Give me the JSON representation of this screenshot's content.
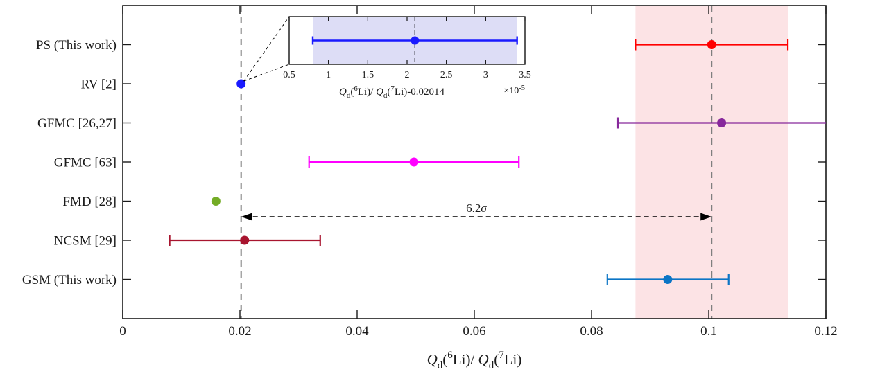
{
  "chart_data": {
    "type": "scatter",
    "subtype": "forest-plot-with-errorbars",
    "title": "",
    "xlabel_segments": [
      {
        "text": "Q",
        "style": "italic"
      },
      {
        "text": "d",
        "style": "sub"
      },
      {
        "text": "(",
        "style": "base"
      },
      {
        "text": "6",
        "style": "sup"
      },
      {
        "text": "Li)/ ",
        "style": "base"
      },
      {
        "text": "Q",
        "style": "italic"
      },
      {
        "text": "d",
        "style": "sub"
      },
      {
        "text": "(",
        "style": "base"
      },
      {
        "text": "7",
        "style": "sup"
      },
      {
        "text": "Li)",
        "style": "base"
      }
    ],
    "xlim": [
      0,
      0.12
    ],
    "x_ticks": [
      0,
      0.02,
      0.04,
      0.06,
      0.08,
      0.1,
      0.12
    ],
    "x_tick_labels": [
      "0",
      "0.02",
      "0.04",
      "0.06",
      "0.08",
      "0.1",
      "0.12"
    ],
    "grid": false,
    "categories": [
      "PS (This work)",
      "RV [2]",
      "GFMC [26,27]",
      "GFMC [63]",
      "FMD [28]",
      "NCSM [29]",
      "GSM (This work)"
    ],
    "points": [
      {
        "label": "PS (This work)",
        "value": 0.1005,
        "err_lo": 0.0875,
        "err_hi": 0.1135,
        "clip_hi": false,
        "color": "#FF0000"
      },
      {
        "label": "RV [2]",
        "value": 0.0202,
        "err_lo": null,
        "err_hi": null,
        "clip_hi": false,
        "color": "#1A1AFF"
      },
      {
        "label": "GFMC [26,27]",
        "value": 0.1022,
        "err_lo": 0.0845,
        "err_hi": 0.12,
        "clip_hi": true,
        "color": "#87289B"
      },
      {
        "label": "GFMC [63]",
        "value": 0.0497,
        "err_lo": 0.0318,
        "err_hi": 0.0676,
        "clip_hi": false,
        "color": "#FF00FF"
      },
      {
        "label": "FMD [28]",
        "value": 0.0159,
        "err_lo": null,
        "err_hi": null,
        "clip_hi": false,
        "color": "#74AC26"
      },
      {
        "label": "NCSM [29]",
        "value": 0.0208,
        "err_lo": 0.008,
        "err_hi": 0.0337,
        "clip_hi": false,
        "color": "#A8152F"
      },
      {
        "label": "GSM (This work)",
        "value": 0.093,
        "err_lo": 0.0827,
        "err_hi": 0.1034,
        "clip_hi": false,
        "color": "#0B75C5"
      }
    ],
    "reference_lines": [
      {
        "x": 0.0202,
        "style": "dashed",
        "color": "#7F7F7F"
      },
      {
        "x": 0.1005,
        "style": "dashed",
        "color": "#7F7F7F"
      }
    ],
    "highlight_band": {
      "from": 0.0875,
      "to": 0.1135,
      "color": "#FCE3E5"
    },
    "annotation": {
      "text": "6.2",
      "sigma": "σ",
      "arrow_from_x": 0.0202,
      "arrow_to_x": 0.1005,
      "style": "double-headed dashed arrow"
    },
    "inset": {
      "description": "zoom of RV [2] point, x offset by -0.02014, units 1e-5",
      "xlim": [
        0.5,
        3.5
      ],
      "x_ticks": [
        0.5,
        1,
        1.5,
        2,
        2.5,
        3,
        3.5
      ],
      "x_tick_labels": [
        "0.5",
        "1",
        "1.5",
        "2",
        "2.5",
        "3",
        "3.5"
      ],
      "multiplier_segments": [
        {
          "text": "×10",
          "style": "base"
        },
        {
          "text": "-5",
          "style": "sup"
        }
      ],
      "xlabel_segments": [
        {
          "text": "Q",
          "style": "italic"
        },
        {
          "text": "d",
          "style": "sub"
        },
        {
          "text": "(",
          "style": "base"
        },
        {
          "text": "6",
          "style": "sup"
        },
        {
          "text": "Li)/ ",
          "style": "base"
        },
        {
          "text": "Q",
          "style": "italic"
        },
        {
          "text": "d",
          "style": "sub"
        },
        {
          "text": "(",
          "style": "base"
        },
        {
          "text": "7",
          "style": "sup"
        },
        {
          "text": "Li)-0.02014",
          "style": "base"
        }
      ],
      "point": {
        "value": 2.1,
        "err_lo": 0.8,
        "err_hi": 3.4,
        "color": "#1A1AFF"
      },
      "band": {
        "from": 0.8,
        "to": 3.4,
        "color": "#DDDDF6"
      },
      "reference_line_x": 2.1
    },
    "colors": {
      "axis": "#1A1A1A",
      "reference_dash": "#7F7F7F",
      "annotation": "#000000",
      "background": "#FFFFFF"
    }
  }
}
